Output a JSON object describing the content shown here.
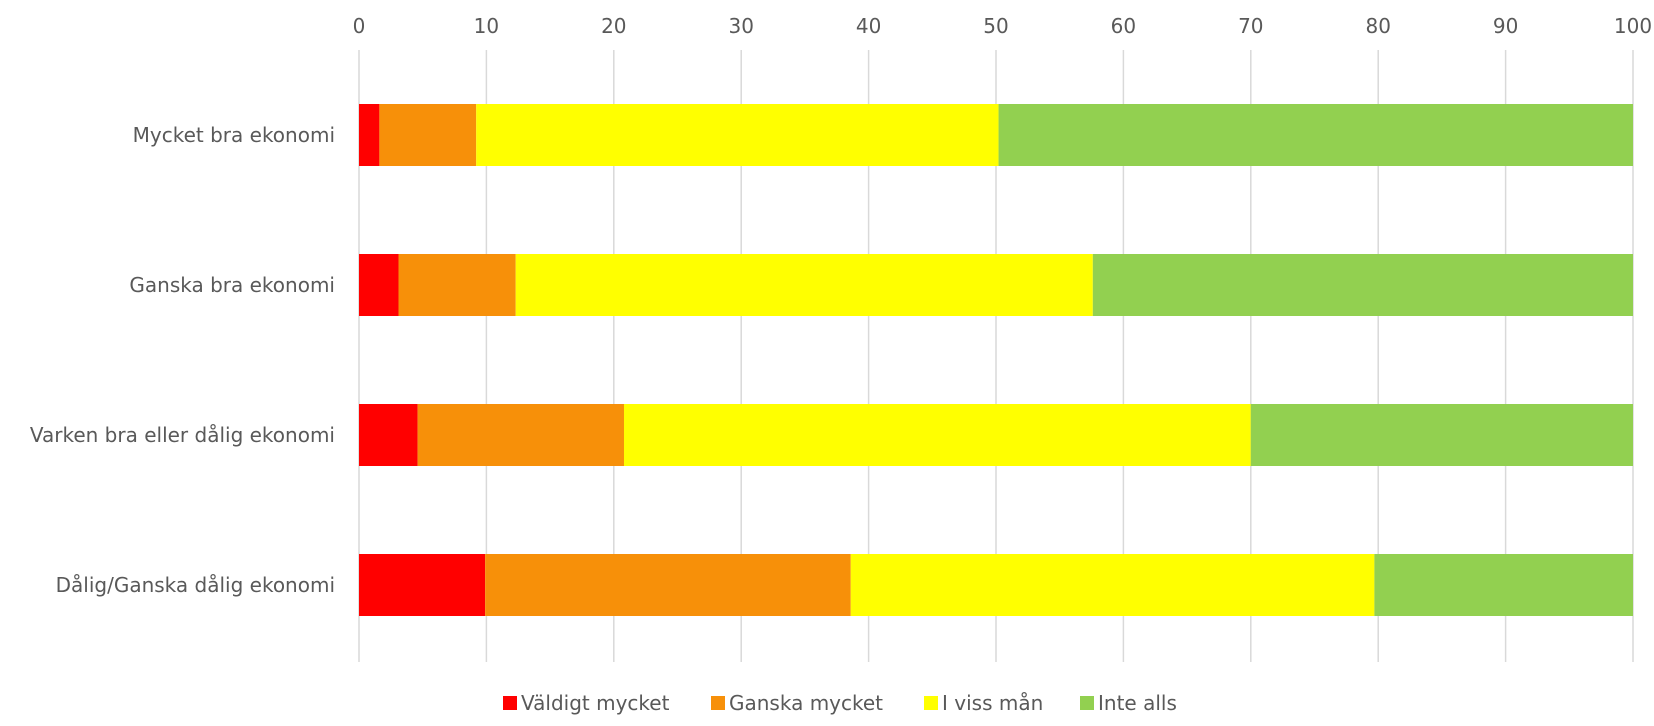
{
  "chart_data": {
    "type": "bar",
    "orientation": "horizontal",
    "stacked": true,
    "title": "",
    "xlabel": "",
    "ylabel": "",
    "xlim": [
      0,
      100
    ],
    "x_ticks": [
      0,
      10,
      20,
      30,
      40,
      50,
      60,
      70,
      80,
      90,
      100
    ],
    "x_axis_position": "top",
    "grid": "vertical",
    "legend_position": "bottom",
    "categories": [
      "Mycket bra ekonomi",
      "Ganska bra ekonomi",
      "Varken bra eller dålig ekonomi",
      "Dålig/Ganska dålig ekonomi"
    ],
    "series": [
      {
        "name": "Väldigt mycket",
        "color": "#ff0000",
        "values": [
          1.6,
          3.1,
          4.6,
          9.9
        ]
      },
      {
        "name": "Ganska mycket",
        "color": "#f79009",
        "values": [
          7.6,
          9.2,
          16.2,
          28.7
        ]
      },
      {
        "name": "I viss mån",
        "color": "#ffff00",
        "values": [
          41.0,
          45.3,
          49.2,
          41.1
        ]
      },
      {
        "name": "Inte alls",
        "color": "#92d050",
        "values": [
          49.8,
          42.4,
          30.0,
          20.3
        ]
      }
    ]
  }
}
